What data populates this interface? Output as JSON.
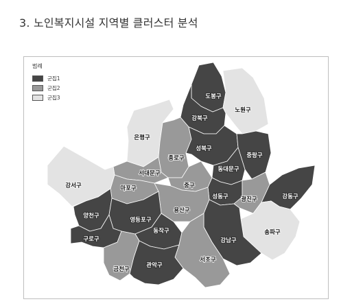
{
  "page": {
    "title": "3. 노인복지시설 지역별 클러스터 분석"
  },
  "legend": {
    "title": "범례",
    "items": [
      {
        "label": "군집1",
        "color": "#454545"
      },
      {
        "label": "군집2",
        "color": "#999999"
      },
      {
        "label": "군집3",
        "color": "#e3e3e3"
      }
    ]
  },
  "districts": [
    {
      "name": "도봉구",
      "cluster": 1
    },
    {
      "name": "노원구",
      "cluster": 3
    },
    {
      "name": "강북구",
      "cluster": 1
    },
    {
      "name": "은평구",
      "cluster": 3
    },
    {
      "name": "종로구",
      "cluster": 2
    },
    {
      "name": "성북구",
      "cluster": 1
    },
    {
      "name": "중랑구",
      "cluster": 1
    },
    {
      "name": "동대문구",
      "cluster": 1
    },
    {
      "name": "서대문구",
      "cluster": 2
    },
    {
      "name": "강서구",
      "cluster": 3
    },
    {
      "name": "마포구",
      "cluster": 2
    },
    {
      "name": "중구",
      "cluster": 2
    },
    {
      "name": "성동구",
      "cluster": 1
    },
    {
      "name": "광진구",
      "cluster": 2
    },
    {
      "name": "강동구",
      "cluster": 1
    },
    {
      "name": "용산구",
      "cluster": 2
    },
    {
      "name": "양천구",
      "cluster": 1
    },
    {
      "name": "영등포구",
      "cluster": 1
    },
    {
      "name": "송파구",
      "cluster": 3
    },
    {
      "name": "구로구",
      "cluster": 1
    },
    {
      "name": "동작구",
      "cluster": 1
    },
    {
      "name": "강남구",
      "cluster": 1
    },
    {
      "name": "서초구",
      "cluster": 2
    },
    {
      "name": "금천구",
      "cluster": 2
    },
    {
      "name": "관악구",
      "cluster": 1
    }
  ]
}
